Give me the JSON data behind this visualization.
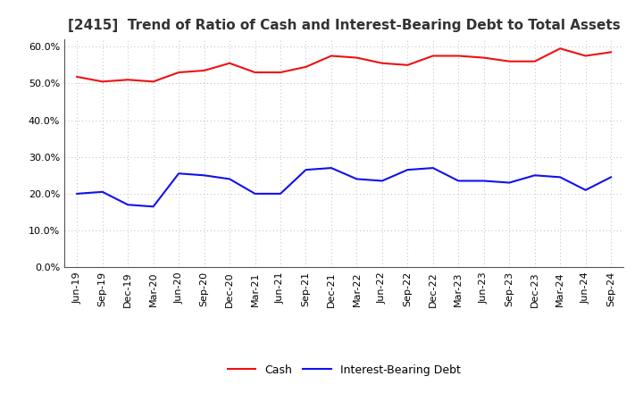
{
  "title": "[2415]  Trend of Ratio of Cash and Interest-Bearing Debt to Total Assets",
  "x_labels": [
    "Jun-19",
    "Sep-19",
    "Dec-19",
    "Mar-20",
    "Jun-20",
    "Sep-20",
    "Dec-20",
    "Mar-21",
    "Jun-21",
    "Sep-21",
    "Dec-21",
    "Mar-22",
    "Jun-22",
    "Sep-22",
    "Dec-22",
    "Mar-23",
    "Jun-23",
    "Sep-23",
    "Dec-23",
    "Mar-24",
    "Jun-24",
    "Sep-24"
  ],
  "cash": [
    51.8,
    50.5,
    51.0,
    50.5,
    53.0,
    53.5,
    55.5,
    53.0,
    53.0,
    54.5,
    57.5,
    57.0,
    55.5,
    55.0,
    57.5,
    57.5,
    57.0,
    56.0,
    56.0,
    59.5,
    57.5,
    58.5
  ],
  "interest_bearing_debt": [
    20.0,
    20.5,
    17.0,
    16.5,
    25.5,
    25.0,
    24.0,
    20.0,
    20.0,
    26.5,
    27.0,
    24.0,
    23.5,
    26.5,
    27.0,
    23.5,
    23.5,
    23.0,
    25.0,
    24.5,
    21.0,
    24.5
  ],
  "cash_color": "#EE1111",
  "debt_color": "#1111EE",
  "background_color": "#FFFFFF",
  "grid_color": "#BBBBBB",
  "ylim": [
    0,
    62
  ],
  "yticks": [
    0,
    10,
    20,
    30,
    40,
    50,
    60
  ],
  "legend_cash": "Cash",
  "legend_debt": "Interest-Bearing Debt",
  "title_fontsize": 11,
  "tick_fontsize": 8,
  "line_width": 1.5
}
